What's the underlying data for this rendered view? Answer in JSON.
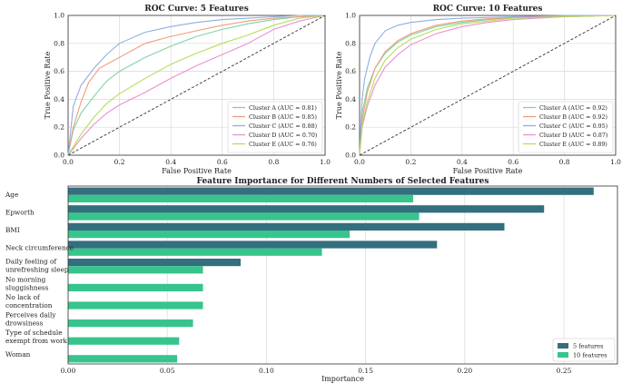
{
  "colors": {
    "cluster_a": "#7fd3a6",
    "cluster_b": "#f29b7a",
    "cluster_c": "#8eaee2",
    "cluster_d": "#ec8fcf",
    "cluster_e": "#b2de5a",
    "five": "#336f7f",
    "ten": "#38c48d",
    "diag": "#333333",
    "grid": "#d9d9d9"
  },
  "chart_data": [
    {
      "type": "line",
      "title": "ROC Curve: 5 Features",
      "xlabel": "False Positive Rate",
      "ylabel": "True Positive Rate",
      "xlim": [
        0,
        1
      ],
      "ylim": [
        0,
        1
      ],
      "xticks": [
        "0.0",
        "0.2",
        "0.4",
        "0.6",
        "0.8",
        "1.0"
      ],
      "yticks": [
        "0.0",
        "0.2",
        "0.4",
        "0.6",
        "0.8",
        "1.0"
      ],
      "grid": true,
      "legend_position": "bottom-right",
      "series": [
        {
          "name": "Cluster A (AUC = 0.81)",
          "color_key": "cluster_a",
          "x": [
            0,
            0.02,
            0.05,
            0.1,
            0.15,
            0.2,
            0.3,
            0.4,
            0.5,
            0.6,
            0.7,
            0.8,
            0.9,
            1.0
          ],
          "y": [
            0,
            0.18,
            0.3,
            0.42,
            0.53,
            0.6,
            0.7,
            0.78,
            0.85,
            0.9,
            0.94,
            0.97,
            0.99,
            1.0
          ]
        },
        {
          "name": "Cluster B (AUC = 0.85)",
          "color_key": "cluster_b",
          "x": [
            0,
            0.02,
            0.05,
            0.08,
            0.12,
            0.2,
            0.3,
            0.4,
            0.5,
            0.6,
            0.7,
            0.8,
            0.9,
            1.0
          ],
          "y": [
            0,
            0.2,
            0.38,
            0.52,
            0.62,
            0.7,
            0.8,
            0.85,
            0.89,
            0.93,
            0.96,
            0.98,
            0.99,
            1.0
          ]
        },
        {
          "name": "Cluster C (AUC = 0.88)",
          "color_key": "cluster_c",
          "x": [
            0,
            0.02,
            0.05,
            0.1,
            0.15,
            0.2,
            0.3,
            0.4,
            0.5,
            0.6,
            0.7,
            0.8,
            0.9,
            1.0
          ],
          "y": [
            0,
            0.35,
            0.5,
            0.62,
            0.72,
            0.8,
            0.88,
            0.92,
            0.95,
            0.97,
            0.98,
            0.99,
            1.0,
            1.0
          ]
        },
        {
          "name": "Cluster D (AUC = 0.70)",
          "color_key": "cluster_d",
          "x": [
            0,
            0.05,
            0.1,
            0.15,
            0.2,
            0.3,
            0.4,
            0.5,
            0.6,
            0.7,
            0.8,
            0.9,
            1.0
          ],
          "y": [
            0,
            0.12,
            0.22,
            0.3,
            0.36,
            0.45,
            0.55,
            0.64,
            0.72,
            0.8,
            0.9,
            0.96,
            1.0
          ]
        },
        {
          "name": "Cluster E (AUC = 0.76)",
          "color_key": "cluster_e",
          "x": [
            0,
            0.05,
            0.1,
            0.15,
            0.2,
            0.3,
            0.4,
            0.5,
            0.6,
            0.7,
            0.8,
            0.9,
            1.0
          ],
          "y": [
            0,
            0.15,
            0.27,
            0.37,
            0.44,
            0.55,
            0.65,
            0.73,
            0.8,
            0.86,
            0.93,
            0.98,
            1.0
          ]
        },
        {
          "name": "",
          "color_key": "diag",
          "dashed": true,
          "x": [
            0,
            1
          ],
          "y": [
            0,
            1
          ]
        }
      ]
    },
    {
      "type": "line",
      "title": "ROC Curve: 10 Features",
      "xlabel": "False Positive Rate",
      "ylabel": "True Positive Rate",
      "xlim": [
        0,
        1
      ],
      "ylim": [
        0,
        1
      ],
      "xticks": [
        "0.0",
        "0.2",
        "0.4",
        "0.6",
        "0.8",
        "1.0"
      ],
      "yticks": [
        "0.0",
        "0.2",
        "0.4",
        "0.6",
        "0.8",
        "1.0"
      ],
      "grid": true,
      "legend_position": "bottom-right",
      "series": [
        {
          "name": "Cluster A (AUC = 0.92)",
          "color_key": "cluster_a",
          "x": [
            0,
            0.01,
            0.03,
            0.06,
            0.1,
            0.15,
            0.2,
            0.3,
            0.4,
            0.5,
            0.6,
            0.8,
            1.0
          ],
          "y": [
            0,
            0.3,
            0.48,
            0.62,
            0.73,
            0.81,
            0.86,
            0.92,
            0.95,
            0.97,
            0.985,
            0.995,
            1.0
          ]
        },
        {
          "name": "Cluster B (AUC = 0.92)",
          "color_key": "cluster_b",
          "x": [
            0,
            0.01,
            0.03,
            0.06,
            0.1,
            0.15,
            0.2,
            0.3,
            0.4,
            0.5,
            0.6,
            0.8,
            1.0
          ],
          "y": [
            0,
            0.25,
            0.45,
            0.62,
            0.74,
            0.82,
            0.87,
            0.93,
            0.96,
            0.975,
            0.985,
            0.995,
            1.0
          ]
        },
        {
          "name": "Cluster C (AUC = 0.95)",
          "color_key": "cluster_c",
          "x": [
            0,
            0.01,
            0.02,
            0.04,
            0.06,
            0.1,
            0.15,
            0.2,
            0.3,
            0.4,
            0.6,
            0.8,
            1.0
          ],
          "y": [
            0,
            0.4,
            0.55,
            0.7,
            0.8,
            0.89,
            0.93,
            0.95,
            0.97,
            0.98,
            0.99,
            1.0,
            1.0
          ]
        },
        {
          "name": "Cluster D (AUC = 0.87)",
          "color_key": "cluster_d",
          "x": [
            0,
            0.01,
            0.03,
            0.06,
            0.1,
            0.15,
            0.2,
            0.3,
            0.4,
            0.5,
            0.6,
            0.8,
            1.0
          ],
          "y": [
            0,
            0.2,
            0.35,
            0.5,
            0.63,
            0.72,
            0.79,
            0.87,
            0.92,
            0.95,
            0.97,
            0.99,
            1.0
          ]
        },
        {
          "name": "Cluster E (AUC = 0.89)",
          "color_key": "cluster_e",
          "x": [
            0,
            0.01,
            0.03,
            0.06,
            0.1,
            0.15,
            0.2,
            0.3,
            0.4,
            0.5,
            0.6,
            0.8,
            1.0
          ],
          "y": [
            0,
            0.22,
            0.38,
            0.55,
            0.68,
            0.77,
            0.83,
            0.9,
            0.94,
            0.96,
            0.98,
            0.99,
            1.0
          ]
        },
        {
          "name": "",
          "color_key": "diag",
          "dashed": true,
          "x": [
            0,
            1
          ],
          "y": [
            0,
            1
          ]
        }
      ]
    },
    {
      "type": "bar",
      "orientation": "horizontal",
      "title": "Feature Importance for Different Numbers of Selected Features",
      "xlabel": "Importance",
      "ylabel": "",
      "xlim": [
        0,
        0.277
      ],
      "xticks": [
        "0.00",
        "0.05",
        "0.10",
        "0.15",
        "0.20",
        "0.25"
      ],
      "grid": true,
      "legend_position": "bottom-right",
      "categories": [
        [
          "Age"
        ],
        [
          "Epworth"
        ],
        [
          "BMI"
        ],
        [
          "Neck circumference"
        ],
        [
          "Daily feeling of",
          "unrefreshing sleep"
        ],
        [
          "No morning",
          "sluggishness"
        ],
        [
          "No lack of",
          "concentration"
        ],
        [
          "Perceives daily",
          "drowsiness"
        ],
        [
          "Type of schedule",
          "exempt from work"
        ],
        [
          "Woman"
        ]
      ],
      "series": [
        {
          "name": "5 features",
          "color_key": "five",
          "values": [
            0.265,
            0.24,
            0.22,
            0.186,
            0.087,
            null,
            null,
            null,
            null,
            null
          ]
        },
        {
          "name": "10 features",
          "color_key": "ten",
          "values": [
            0.174,
            0.177,
            0.142,
            0.128,
            0.068,
            0.068,
            0.068,
            0.063,
            0.056,
            0.055
          ]
        }
      ]
    }
  ]
}
